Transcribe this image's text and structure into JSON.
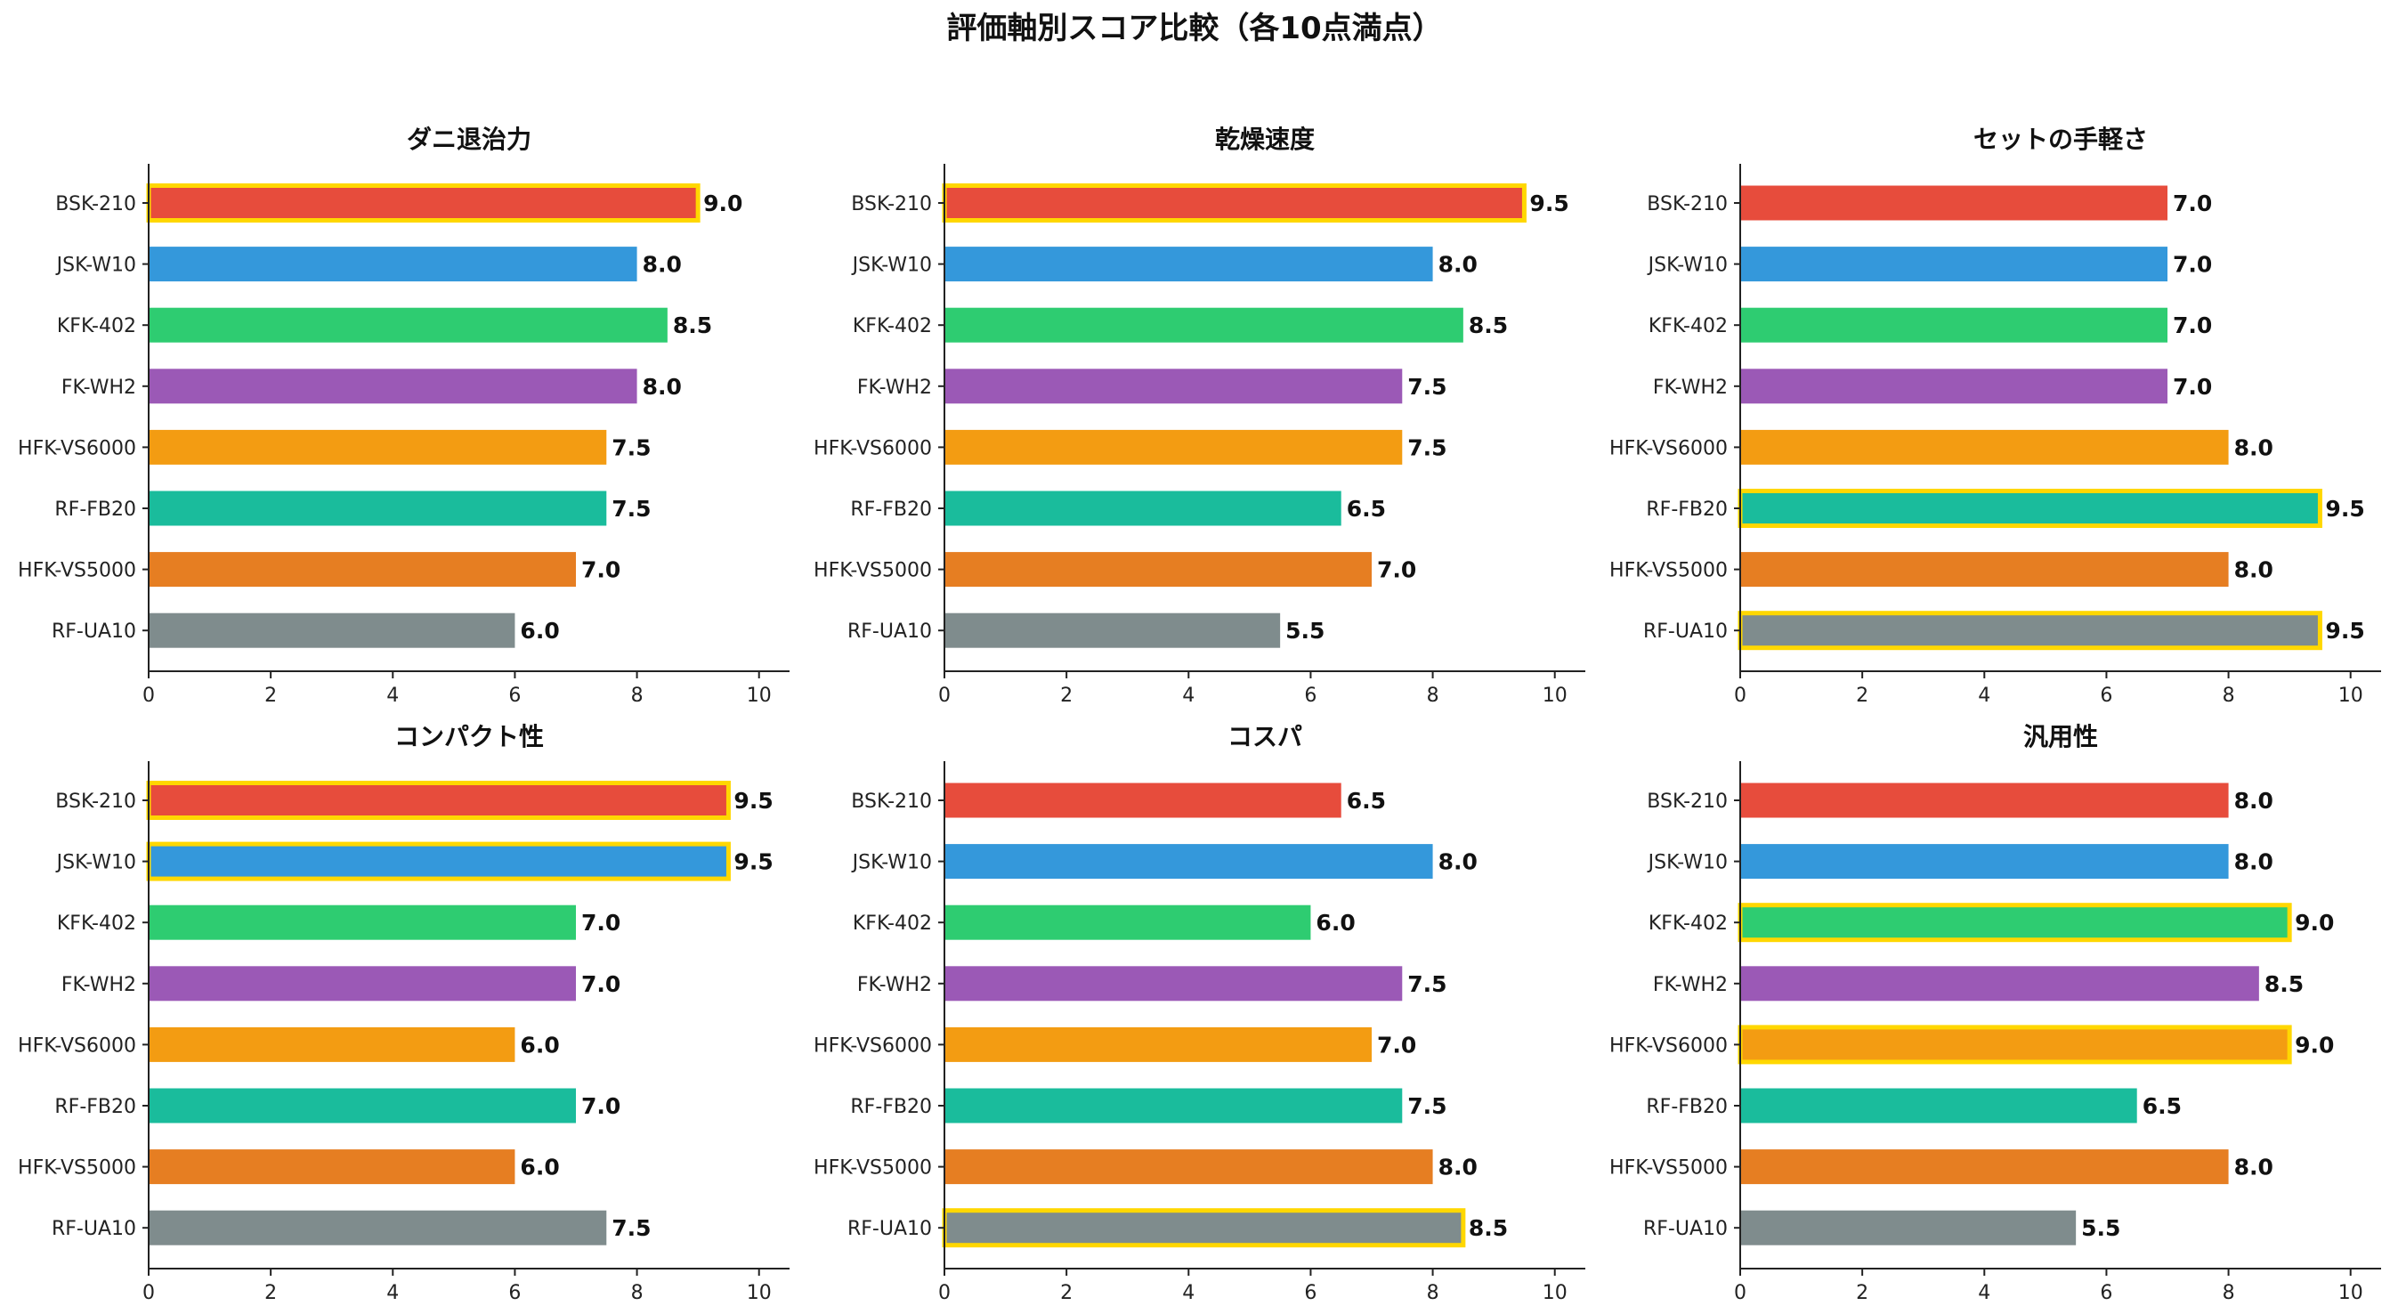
{
  "title": "評価軸別スコア比較（各10点満点）",
  "highlight_color": "#FFD700",
  "products": [
    "BSK-210",
    "JSK-W10",
    "KFK-402",
    "FK-WH2",
    "HFK-VS6000",
    "RF-FB20",
    "HFK-VS5000",
    "RF-UA10"
  ],
  "product_colors": [
    "#E74C3C",
    "#3498DB",
    "#2ECC71",
    "#9B59B6",
    "#F39C12",
    "#1ABC9C",
    "#E67E22",
    "#7F8C8D"
  ],
  "chart_data": [
    {
      "type": "bar",
      "orientation": "horizontal",
      "title": "ダニ退治力",
      "categories": [
        "BSK-210",
        "JSK-W10",
        "KFK-402",
        "FK-WH2",
        "HFK-VS6000",
        "RF-FB20",
        "HFK-VS5000",
        "RF-UA10"
      ],
      "values": [
        9.0,
        8.0,
        8.5,
        8.0,
        7.5,
        7.5,
        7.0,
        6.0
      ],
      "value_labels": [
        "9.0",
        "8.0",
        "8.5",
        "8.0",
        "7.5",
        "7.5",
        "7.0",
        "6.0"
      ],
      "highlighted": [
        "BSK-210"
      ],
      "xlim": [
        0,
        10.5
      ],
      "xticks": [
        "0",
        "2",
        "4",
        "6",
        "8",
        "10"
      ],
      "grid": false
    },
    {
      "type": "bar",
      "orientation": "horizontal",
      "title": "乾燥速度",
      "categories": [
        "BSK-210",
        "JSK-W10",
        "KFK-402",
        "FK-WH2",
        "HFK-VS6000",
        "RF-FB20",
        "HFK-VS5000",
        "RF-UA10"
      ],
      "values": [
        9.5,
        8.0,
        8.5,
        7.5,
        7.5,
        6.5,
        7.0,
        5.5
      ],
      "value_labels": [
        "9.5",
        "8.0",
        "8.5",
        "7.5",
        "7.5",
        "6.5",
        "7.0",
        "5.5"
      ],
      "highlighted": [
        "BSK-210"
      ],
      "xlim": [
        0,
        10.5
      ],
      "xticks": [
        "0",
        "2",
        "4",
        "6",
        "8",
        "10"
      ],
      "grid": false
    },
    {
      "type": "bar",
      "orientation": "horizontal",
      "title": "セットの手軽さ",
      "categories": [
        "BSK-210",
        "JSK-W10",
        "KFK-402",
        "FK-WH2",
        "HFK-VS6000",
        "RF-FB20",
        "HFK-VS5000",
        "RF-UA10"
      ],
      "values": [
        7.0,
        7.0,
        7.0,
        7.0,
        8.0,
        9.5,
        8.0,
        9.5
      ],
      "value_labels": [
        "7.0",
        "7.0",
        "7.0",
        "7.0",
        "8.0",
        "9.5",
        "8.0",
        "9.5"
      ],
      "highlighted": [
        "RF-FB20",
        "RF-UA10"
      ],
      "xlim": [
        0,
        10.5
      ],
      "xticks": [
        "0",
        "2",
        "4",
        "6",
        "8",
        "10"
      ],
      "grid": false
    },
    {
      "type": "bar",
      "orientation": "horizontal",
      "title": "コンパクト性",
      "categories": [
        "BSK-210",
        "JSK-W10",
        "KFK-402",
        "FK-WH2",
        "HFK-VS6000",
        "RF-FB20",
        "HFK-VS5000",
        "RF-UA10"
      ],
      "values": [
        9.5,
        9.5,
        7.0,
        7.0,
        6.0,
        7.0,
        6.0,
        7.5
      ],
      "value_labels": [
        "9.5",
        "9.5",
        "7.0",
        "7.0",
        "6.0",
        "7.0",
        "6.0",
        "7.5"
      ],
      "highlighted": [
        "BSK-210",
        "JSK-W10"
      ],
      "xlim": [
        0,
        10.5
      ],
      "xticks": [
        "0",
        "2",
        "4",
        "6",
        "8",
        "10"
      ],
      "grid": false
    },
    {
      "type": "bar",
      "orientation": "horizontal",
      "title": "コスパ",
      "categories": [
        "BSK-210",
        "JSK-W10",
        "KFK-402",
        "FK-WH2",
        "HFK-VS6000",
        "RF-FB20",
        "HFK-VS5000",
        "RF-UA10"
      ],
      "values": [
        6.5,
        8.0,
        6.0,
        7.5,
        7.0,
        7.5,
        8.0,
        8.5
      ],
      "value_labels": [
        "6.5",
        "8.0",
        "6.0",
        "7.5",
        "7.0",
        "7.5",
        "8.0",
        "8.5"
      ],
      "highlighted": [
        "RF-UA10"
      ],
      "xlim": [
        0,
        10.5
      ],
      "xticks": [
        "0",
        "2",
        "4",
        "6",
        "8",
        "10"
      ],
      "grid": false
    },
    {
      "type": "bar",
      "orientation": "horizontal",
      "title": "汎用性",
      "categories": [
        "BSK-210",
        "JSK-W10",
        "KFK-402",
        "FK-WH2",
        "HFK-VS6000",
        "RF-FB20",
        "HFK-VS5000",
        "RF-UA10"
      ],
      "values": [
        8.0,
        8.0,
        9.0,
        8.5,
        9.0,
        6.5,
        8.0,
        5.5
      ],
      "value_labels": [
        "8.0",
        "8.0",
        "9.0",
        "8.5",
        "9.0",
        "6.5",
        "8.0",
        "5.5"
      ],
      "highlighted": [
        "KFK-402",
        "HFK-VS6000"
      ],
      "xlim": [
        0,
        10.5
      ],
      "xticks": [
        "0",
        "2",
        "4",
        "6",
        "8",
        "10"
      ],
      "grid": false
    }
  ]
}
